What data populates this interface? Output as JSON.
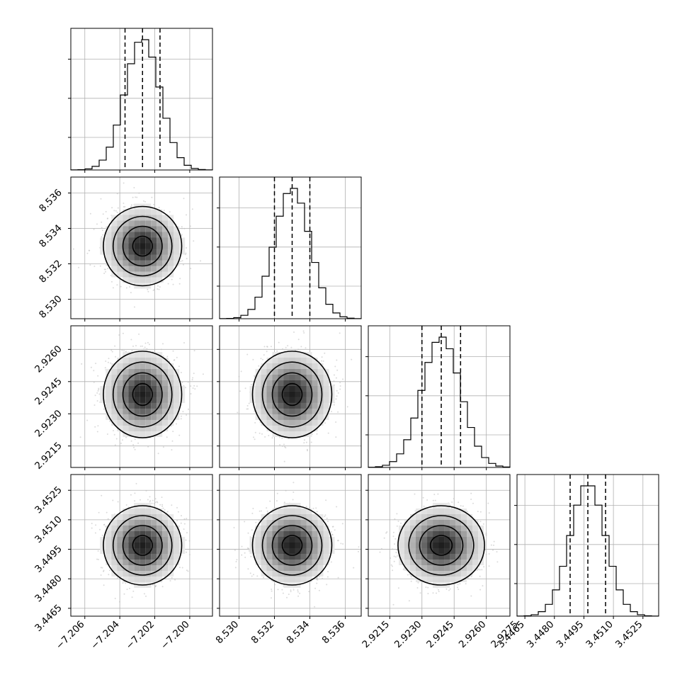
{
  "chart_data": {
    "type": "corner",
    "grid": true,
    "parameters": [
      {
        "mean": -7.2027,
        "std": 0.001,
        "quantiles": [
          -7.2037,
          -7.2027,
          -7.2017
        ],
        "range": [
          -7.2068,
          -7.1987
        ],
        "ticks": [
          -7.206,
          -7.204,
          -7.202,
          -7.2
        ],
        "tick_labels": [
          "−7.206",
          "−7.204",
          "−7.202",
          "−7.200"
        ]
      },
      {
        "mean": 8.533,
        "std": 0.001,
        "quantiles": [
          8.532,
          8.533,
          8.534
        ],
        "range": [
          8.5289,
          8.5369
        ],
        "ticks": [
          8.53,
          8.532,
          8.534,
          8.536
        ],
        "tick_labels": [
          "8.530",
          "8.532",
          "8.534",
          "8.536"
        ]
      },
      {
        "mean": 2.9239,
        "std": 0.0009,
        "quantiles": [
          2.923,
          2.9239,
          2.9248
        ],
        "range": [
          2.9205,
          2.9271
        ],
        "ticks": [
          2.9215,
          2.923,
          2.9245,
          2.926,
          2.9275
        ],
        "tick_labels": [
          "2.9215",
          "2.9230",
          "2.9245",
          "2.9260",
          "2.9275"
        ]
      },
      {
        "mean": 3.4497,
        "std": 0.0009,
        "quantiles": [
          3.4488,
          3.4497,
          3.4506
        ],
        "range": [
          3.4461,
          3.4533
        ],
        "ticks": [
          3.4465,
          3.448,
          3.4495,
          3.451,
          3.4525
        ],
        "tick_labels": [
          "3.4465",
          "3.4480",
          "3.4495",
          "3.4510",
          "3.4525"
        ]
      }
    ],
    "histogram_bins": 20,
    "contour_levels": 4
  }
}
